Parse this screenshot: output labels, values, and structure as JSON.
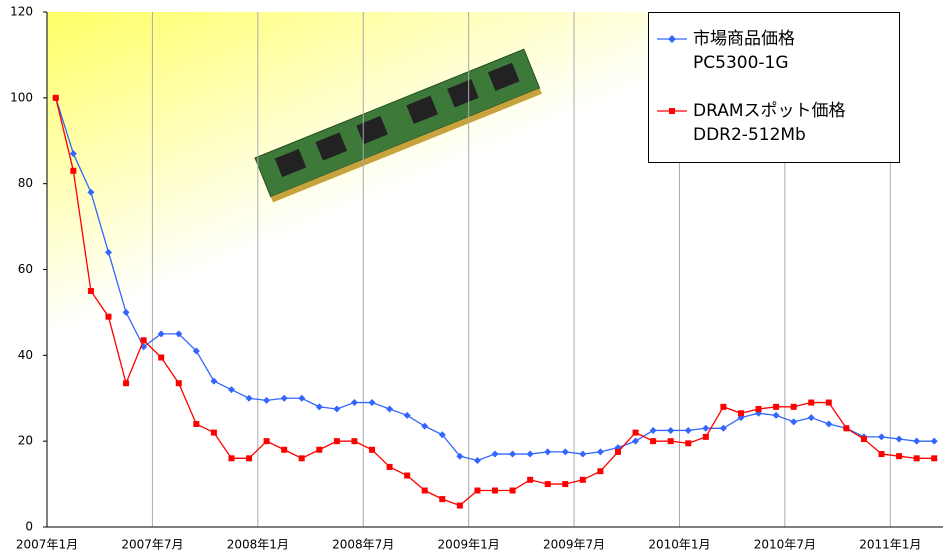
{
  "chart_data": {
    "type": "line",
    "categories": [
      "2007年1月",
      null,
      null,
      null,
      null,
      null,
      "2007年7月",
      null,
      null,
      null,
      null,
      null,
      "2008年1月",
      null,
      null,
      null,
      null,
      null,
      "2008年7月",
      null,
      null,
      null,
      null,
      null,
      "2009年1月",
      null,
      null,
      null,
      null,
      null,
      "2009年7月",
      null,
      null,
      null,
      null,
      null,
      "2010年1月",
      null,
      null,
      null,
      null,
      null,
      "2010年7月",
      null,
      null,
      null,
      null,
      null,
      "2011年1月",
      null,
      null
    ],
    "series": [
      {
        "name": "市場商品価格\nPC5300-1G",
        "color": "#3366ff",
        "marker": "diamond",
        "values": [
          100,
          87,
          78,
          64,
          50,
          42,
          45,
          45,
          41,
          34,
          32,
          30,
          29.5,
          30,
          30,
          28,
          27.5,
          29,
          29,
          27.5,
          26,
          23.5,
          21.5,
          16.5,
          15.5,
          17,
          17,
          17,
          17.5,
          17.5,
          17,
          17.5,
          18.5,
          20,
          22.5,
          22.5,
          22.5,
          23,
          23,
          25.5,
          26.5,
          26,
          24.5,
          25.5,
          24,
          23,
          21,
          21,
          20.5,
          20,
          20
        ]
      },
      {
        "name": "DRAMスポット価格\nDDR2-512Mb",
        "color": "#ff0000",
        "marker": "square",
        "values": [
          100,
          83,
          55,
          49,
          33.5,
          43.5,
          39.5,
          33.5,
          24,
          22,
          16,
          16,
          20,
          18,
          16,
          18,
          20,
          20,
          18,
          14,
          12,
          8.5,
          6.5,
          5,
          8.5,
          8.5,
          8.5,
          11,
          10,
          10,
          11,
          13,
          17.5,
          22,
          20,
          20,
          19.5,
          21,
          28,
          26.5,
          27.5,
          28,
          28,
          29,
          29,
          23,
          20.5,
          17,
          16.5,
          16,
          16
        ]
      }
    ],
    "ylim": [
      0,
      120
    ],
    "yticks": [
      0,
      20,
      40,
      60,
      80,
      100,
      120
    ],
    "grid": "x",
    "legend": "upper right"
  }
}
